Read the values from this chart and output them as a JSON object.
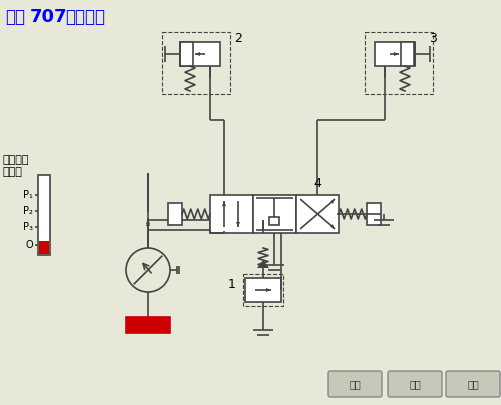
{
  "bg_color": "#e8e8d8",
  "line_color": "#444444",
  "red_color": "#cc0000",
  "title_normal": "化工",
  "title_bold": "707",
  "title_rest": "剪辑制作",
  "pressure_label": "系统压力\n指示：",
  "p1": "P₁",
  "p2": "P₂",
  "p3": "P₃",
  "o_label": "O",
  "label1": "1",
  "label2": "2",
  "label3": "3",
  "label4": "4",
  "btn1": "左位",
  "btn2": "中位",
  "btn3": "右位"
}
